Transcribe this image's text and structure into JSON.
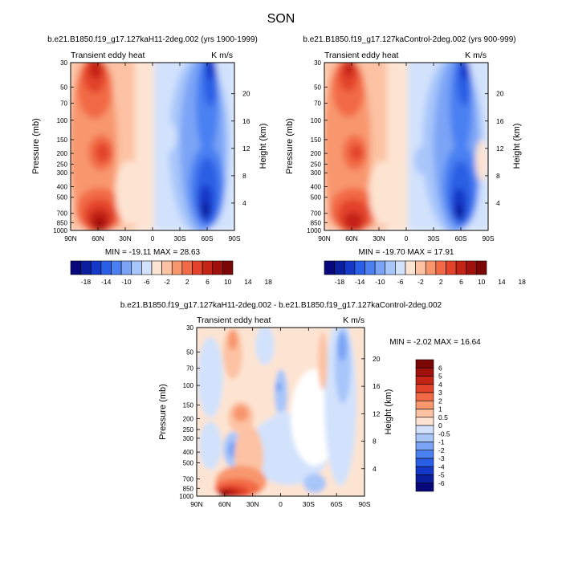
{
  "page_title": "SON",
  "chart_data": [
    {
      "type": "heatmap",
      "title": "b.e21.B1850.f19_g17.127kaH11-2deg.002 (yrs 1900-1999)",
      "left_label": "Transient eddy heat",
      "right_label": "K m/s",
      "ylabel": "Pressure (mb)",
      "y2label": "Height (km)",
      "x_ticks": [
        "90N",
        "60N",
        "30N",
        "0",
        "30S",
        "60S",
        "90S"
      ],
      "y_ticks": [
        "30",
        "50",
        "70",
        "100",
        "150",
        "200",
        "250",
        "300",
        "400",
        "500",
        "700",
        "850",
        "1000"
      ],
      "y2_ticks": [
        "20",
        "16",
        "12",
        "8",
        "4"
      ],
      "stats": "MIN = -19.11   MAX = 28.63",
      "min": -19.11,
      "max": 28.63
    },
    {
      "type": "heatmap",
      "title": "b.e21.B1850.f19_g17.127kaControl-2deg.002 (yrs 900-999)",
      "left_label": "Transient eddy heat",
      "right_label": "K m/s",
      "ylabel": "Pressure (mb)",
      "y2label": "Height (km)",
      "x_ticks": [
        "90N",
        "60N",
        "30N",
        "0",
        "30S",
        "60S",
        "90S"
      ],
      "y_ticks": [
        "30",
        "50",
        "70",
        "100",
        "150",
        "200",
        "250",
        "300",
        "400",
        "500",
        "700",
        "850",
        "1000"
      ],
      "y2_ticks": [
        "20",
        "16",
        "12",
        "8",
        "4"
      ],
      "stats": "MIN = -19.70   MAX = 17.91",
      "min": -19.7,
      "max": 17.91
    },
    {
      "type": "heatmap",
      "title": "b.e21.B1850.f19_g17.127kaH11-2deg.002 - b.e21.B1850.f19_g17.127kaControl-2deg.002",
      "left_label": "Transient eddy heat",
      "right_label": "K m/s",
      "ylabel": "Pressure (mb)",
      "y2label": "Height (km)",
      "x_ticks": [
        "90N",
        "60N",
        "30N",
        "0",
        "30S",
        "60S",
        "90S"
      ],
      "y_ticks": [
        "30",
        "50",
        "70",
        "100",
        "150",
        "200",
        "250",
        "300",
        "400",
        "500",
        "700",
        "850",
        "1000"
      ],
      "y2_ticks": [
        "20",
        "16",
        "12",
        "8",
        "4"
      ],
      "stats": "MIN = -2.02   MAX = 16.64",
      "min": -2.02,
      "max": 16.64
    }
  ],
  "colorbar_top": {
    "labels": [
      "-18",
      "-14",
      "-10",
      "-6",
      "-2",
      "2",
      "6",
      "10",
      "14",
      "18"
    ],
    "colors": [
      "#08087a",
      "#0a1e9e",
      "#1439c8",
      "#2a5ee4",
      "#4a80f2",
      "#7ba4f6",
      "#a8c6fa",
      "#d2e2fc",
      "#fde4d2",
      "#fcc2a3",
      "#f8976e",
      "#f26a45",
      "#e2432a",
      "#c42416",
      "#a0100c",
      "#7a0606"
    ]
  },
  "colorbar_diff": {
    "labels": [
      "6",
      "5",
      "4",
      "3",
      "2",
      "1",
      "0.5",
      "0",
      "-0.5",
      "-1",
      "-2",
      "-3",
      "-4",
      "-5",
      "-6"
    ],
    "colors": [
      "#7a0606",
      "#a0100c",
      "#c42416",
      "#e2432a",
      "#f26a45",
      "#f8976e",
      "#fcc2a3",
      "#fde4d2",
      "#d2e2fc",
      "#a8c6fa",
      "#7ba4f6",
      "#4a80f2",
      "#2a5ee4",
      "#1439c8",
      "#0a1e9e",
      "#08087a"
    ]
  }
}
